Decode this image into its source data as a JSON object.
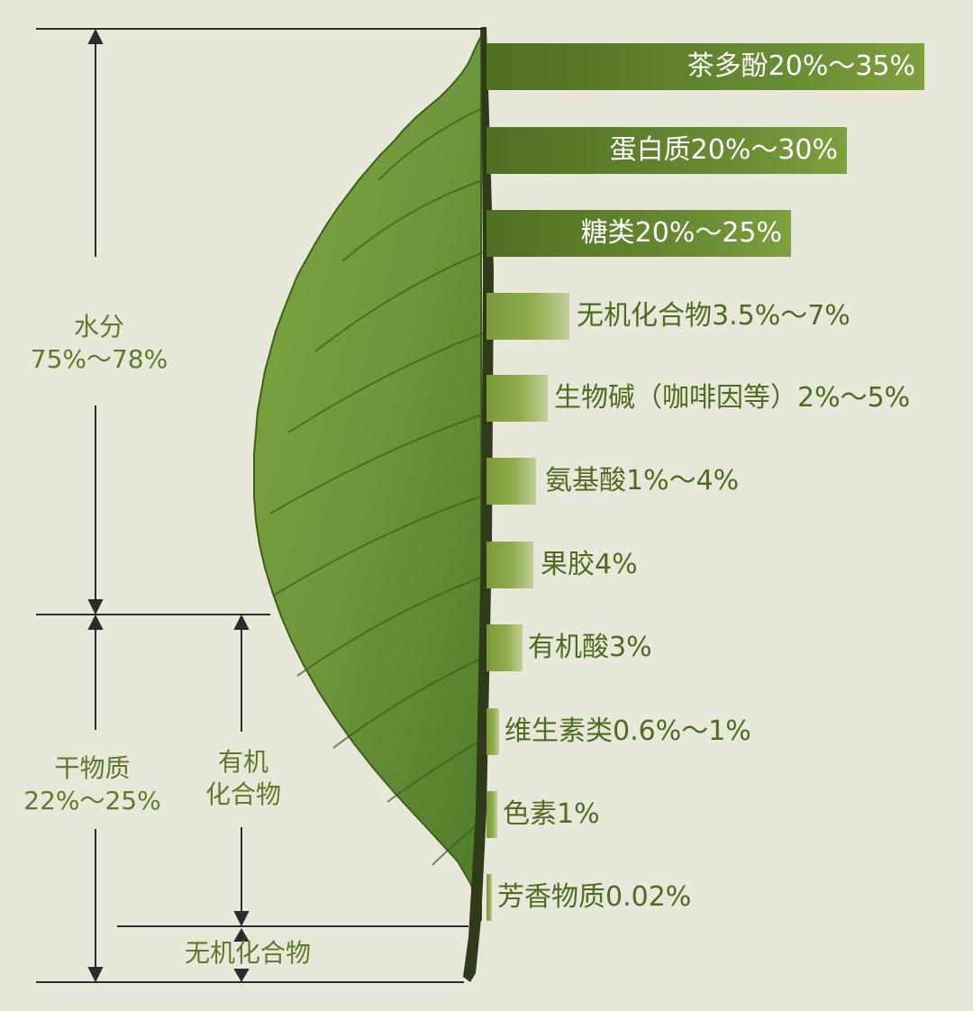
{
  "left_labels": {
    "water": [
      "水分",
      "75%～78%"
    ],
    "dry_matter": [
      "干物质",
      "22%～25%"
    ],
    "organic": [
      "有机",
      "化合物"
    ],
    "inorganic": "无机化合物"
  },
  "components": [
    {
      "label": "茶多酚20%～35%",
      "style": "dark"
    },
    {
      "label": "蛋白质20%～30%",
      "style": "dark"
    },
    {
      "label": "糖类20%～25%",
      "style": "dark"
    },
    {
      "label": "无机化合物3.5%～7%",
      "style": "light"
    },
    {
      "label": "生物碱（咖啡因等）2%～5%",
      "style": "light"
    },
    {
      "label": "氨基酸1%～4%",
      "style": "light"
    },
    {
      "label": "果胶4%",
      "style": "light"
    },
    {
      "label": "有机酸3%",
      "style": "light"
    },
    {
      "label": "维生素类0.6%～1%",
      "style": "light"
    },
    {
      "label": "色素1%",
      "style": "light"
    },
    {
      "label": "芳香物质0.02%",
      "style": "light"
    }
  ],
  "colors": {
    "background": "#e8e8da",
    "text": "#5e7a2a",
    "leaf": "#6f9a34",
    "stem": "#2f3a18",
    "bar_dark": "#4f6f22"
  }
}
